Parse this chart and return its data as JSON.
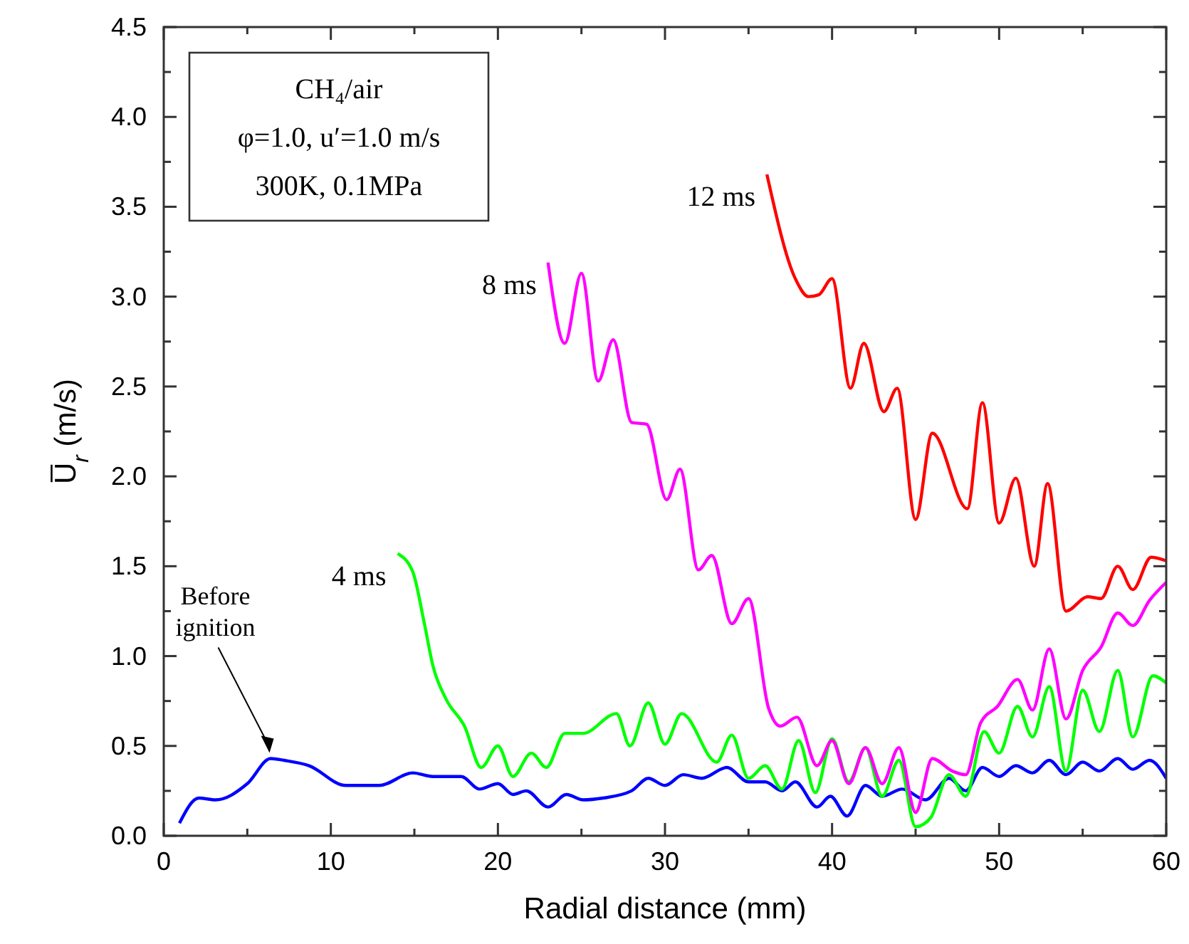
{
  "chart_data": {
    "type": "line",
    "xlabel": "Radial distance (mm)",
    "ylabel": "U̅$_{r}$ (m/s)",
    "xlim": [
      0,
      60
    ],
    "ylim": [
      0,
      4.5
    ],
    "xticks": [
      0,
      {
        "value": 5,
        "label": null
      },
      10,
      {
        "value": 15,
        "label": null
      },
      20,
      {
        "value": 25,
        "label": null
      },
      30,
      {
        "value": 35,
        "label": null
      },
      40,
      {
        "value": 45,
        "label": null
      },
      50,
      {
        "value": 55,
        "label": null
      },
      60
    ],
    "yticks": [
      {
        "value": 0,
        "label": "0.0"
      },
      {
        "value": 0.25,
        "label": null
      },
      {
        "value": 0.5,
        "label": "0.5"
      },
      {
        "value": 0.75,
        "label": null
      },
      {
        "value": 1,
        "label": "1.0"
      },
      {
        "value": 1.25,
        "label": null
      },
      {
        "value": 1.5,
        "label": "1.5"
      },
      {
        "value": 1.75,
        "label": null
      },
      {
        "value": 2,
        "label": "2.0"
      },
      {
        "value": 2.25,
        "label": null
      },
      {
        "value": 2.5,
        "label": "2.5"
      },
      {
        "value": 2.75,
        "label": null
      },
      {
        "value": 3,
        "label": "3.0"
      },
      {
        "value": 3.25,
        "label": null
      },
      {
        "value": 3.5,
        "label": "3.5"
      },
      {
        "value": 3.75,
        "label": null
      },
      {
        "value": 4,
        "label": "4.0"
      },
      {
        "value": 4.25,
        "label": null
      },
      {
        "value": 4.5,
        "label": "4.5"
      }
    ],
    "grid": false,
    "marker": "none",
    "line_style": "solid",
    "series": [
      {
        "color": "#0000ff",
        "x": [
          0.94,
          2.1,
          3.1,
          5,
          6.4,
          7.2,
          8.7,
          10.9,
          12.9,
          14.9,
          16.1,
          17.8,
          18.9,
          20,
          20.9,
          21.7,
          23,
          24.1,
          25.1,
          26.3,
          28,
          29,
          30,
          31.1,
          32.2,
          33.7,
          35,
          36,
          37,
          37.8,
          39.1,
          39.9,
          40.9,
          42,
          43,
          44.2,
          45.6,
          47,
          48,
          49,
          50,
          51,
          52,
          53,
          54,
          55,
          56,
          57.1,
          58,
          59,
          60
        ],
        "values": [
          0.07,
          0.21,
          0.2,
          0.29,
          0.43,
          0.42,
          0.39,
          0.28,
          0.28,
          0.35,
          0.33,
          0.33,
          0.26,
          0.29,
          0.23,
          0.25,
          0.16,
          0.23,
          0.2,
          0.21,
          0.25,
          0.32,
          0.28,
          0.34,
          0.32,
          0.38,
          0.3,
          0.3,
          0.25,
          0.3,
          0.16,
          0.22,
          0.11,
          0.28,
          0.22,
          0.26,
          0.2,
          0.32,
          0.25,
          0.38,
          0.33,
          0.39,
          0.35,
          0.42,
          0.34,
          0.41,
          0.36,
          0.43,
          0.37,
          0.42,
          0.32
        ]
      },
      {
        "name": "4 ms",
        "color": "#00ff00",
        "x": [
          14,
          14.9,
          15.6,
          16.1,
          16.9,
          18,
          19,
          20,
          20.9,
          22,
          22.9,
          24,
          25.1,
          27.1,
          27.9,
          29,
          30,
          31,
          33.1,
          34,
          35,
          36,
          37,
          38,
          39,
          40,
          41,
          42,
          43,
          44,
          45,
          45.9,
          47,
          48,
          49.1,
          50,
          51.1,
          52,
          53,
          54,
          55,
          56,
          57.1,
          58,
          59.2,
          60
        ],
        "values": [
          1.57,
          1.47,
          1.18,
          0.95,
          0.76,
          0.61,
          0.38,
          0.5,
          0.33,
          0.46,
          0.38,
          0.57,
          0.57,
          0.68,
          0.5,
          0.74,
          0.51,
          0.68,
          0.41,
          0.56,
          0.32,
          0.39,
          0.26,
          0.53,
          0.24,
          0.54,
          0.3,
          0.49,
          0.22,
          0.42,
          0.05,
          0.1,
          0.34,
          0.22,
          0.58,
          0.46,
          0.72,
          0.55,
          0.83,
          0.36,
          0.81,
          0.58,
          0.92,
          0.55,
          0.89,
          0.85
        ]
      },
      {
        "name": "8 ms",
        "color": "#ff00ff",
        "x": [
          23,
          24,
          25,
          26,
          26.9,
          28,
          28.9,
          30.1,
          30.9,
          32,
          32.8,
          34,
          35,
          36.2,
          36.9,
          37.9,
          39.1,
          40,
          41,
          42,
          43,
          44,
          45,
          46,
          47.2,
          48,
          48.9,
          49.9,
          51.1,
          52,
          53,
          54,
          55,
          56.1,
          57.1,
          58,
          59,
          60
        ],
        "values": [
          3.19,
          2.74,
          3.13,
          2.53,
          2.76,
          2.3,
          2.29,
          1.87,
          2.04,
          1.48,
          1.56,
          1.18,
          1.32,
          0.71,
          0.61,
          0.66,
          0.39,
          0.53,
          0.29,
          0.49,
          0.29,
          0.49,
          0.13,
          0.43,
          0.36,
          0.34,
          0.63,
          0.72,
          0.87,
          0.7,
          1.04,
          0.65,
          0.92,
          1.05,
          1.24,
          1.17,
          1.31,
          1.41
        ]
      },
      {
        "name": "12 ms",
        "color": "#ff0000",
        "x": [
          36.1,
          37.8,
          38.6,
          39.2,
          40,
          41.1,
          41.9,
          43.1,
          43.9,
          45,
          46,
          48.1,
          49,
          50,
          51,
          52.1,
          52.9,
          54,
          55.3,
          56.1,
          57.1,
          58,
          59.1,
          60
        ],
        "values": [
          3.68,
          3.1,
          3,
          3.01,
          3.1,
          2.49,
          2.74,
          2.36,
          2.49,
          1.76,
          2.24,
          1.82,
          2.41,
          1.74,
          1.99,
          1.5,
          1.96,
          1.25,
          1.33,
          1.32,
          1.5,
          1.37,
          1.55,
          1.53
        ]
      }
    ],
    "annotations": [
      "CH₄/air",
      "φ=1.0, u′=1.0 m/s",
      "300K, 0.1MPa",
      {
        "text": "Before ignition",
        "x": 6.5,
        "y": 0.43
      }
    ]
  }
}
